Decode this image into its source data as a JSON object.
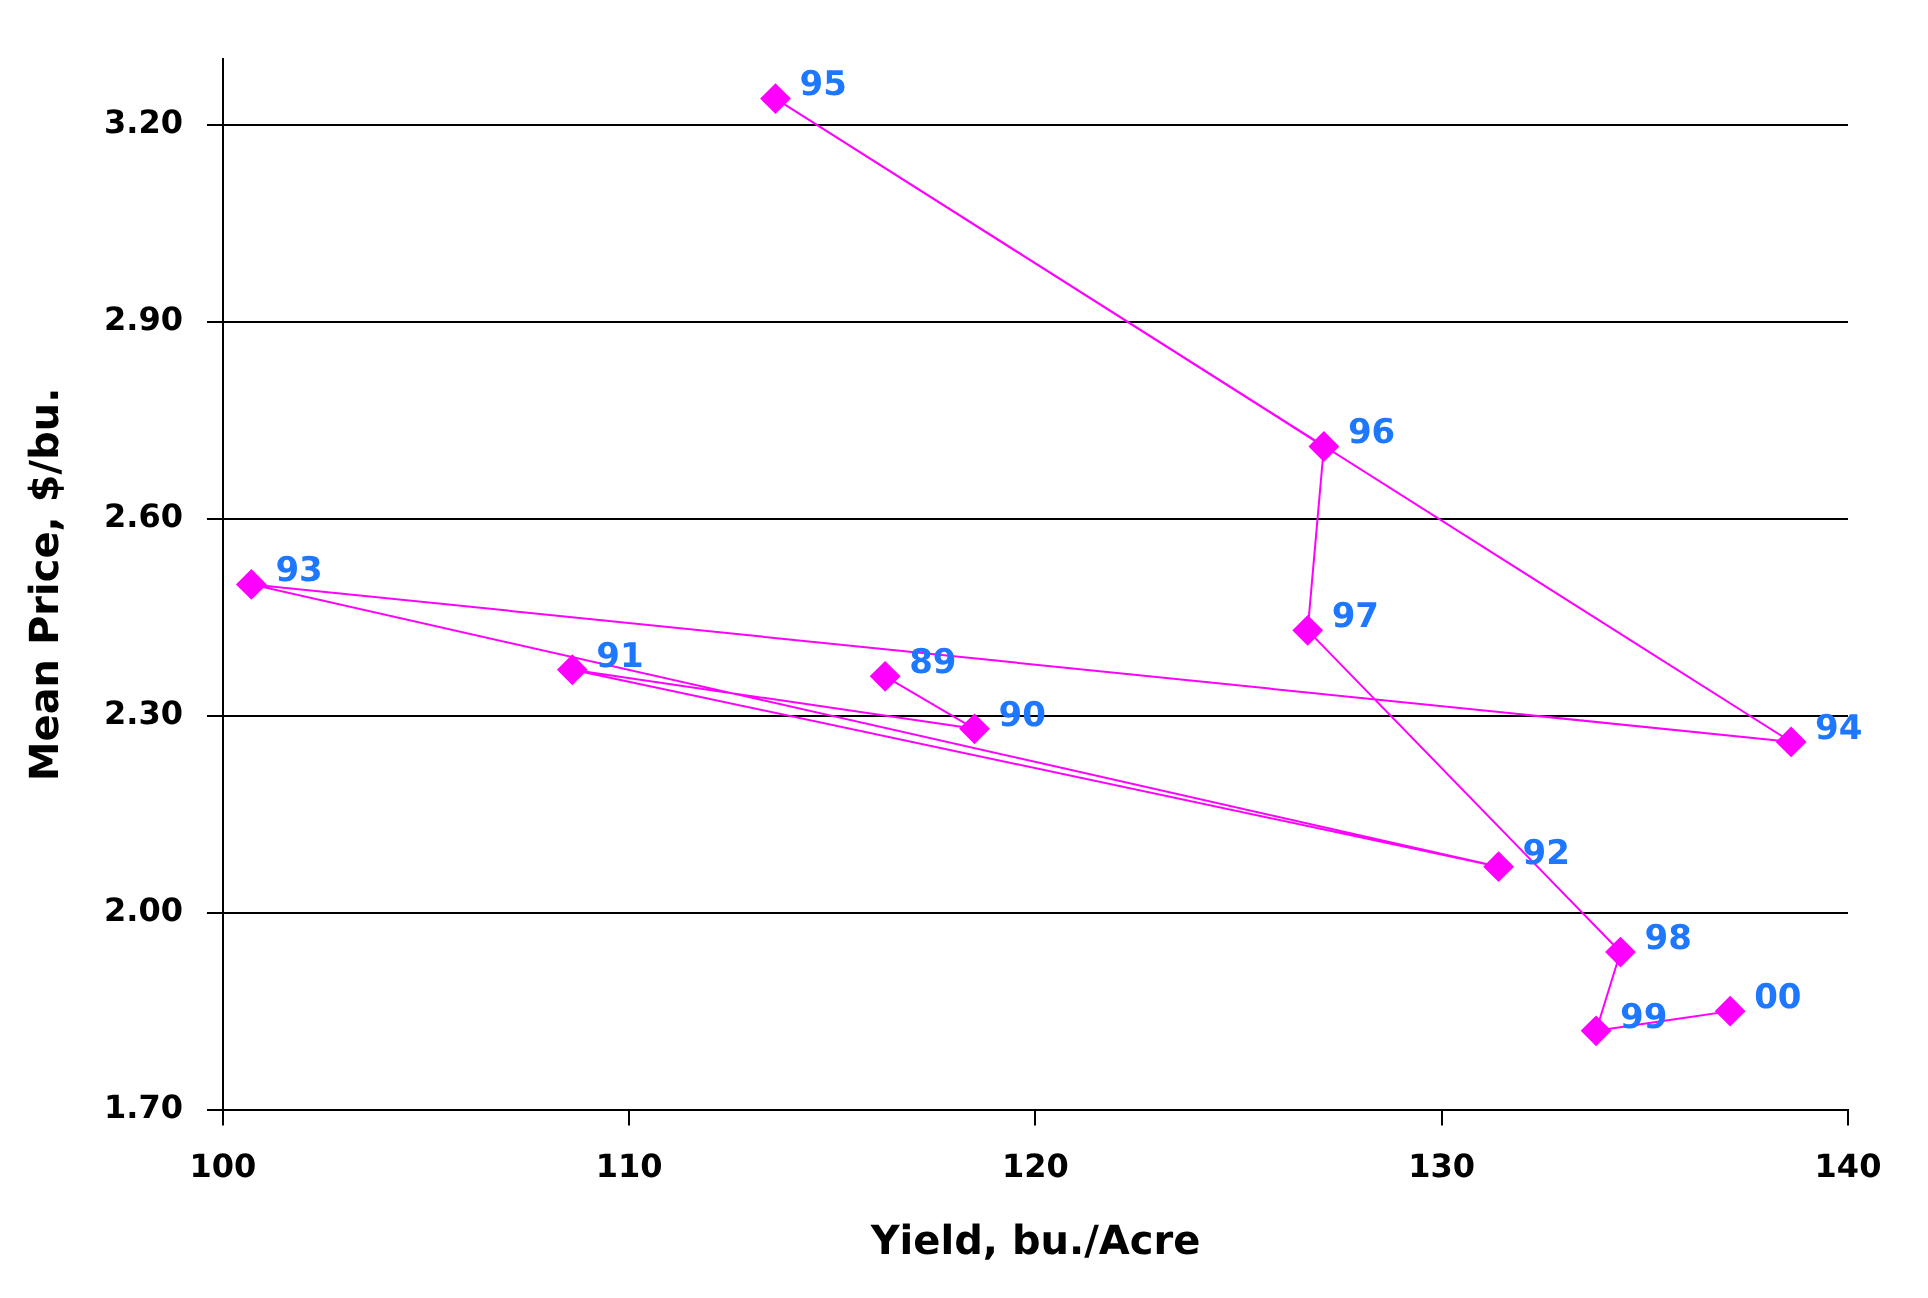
{
  "chart_data": {
    "type": "line",
    "xlabel": "Yield, bu./Acre",
    "ylabel": "Mean Price, $/bu.",
    "x": [
      116.3,
      118.5,
      108.6,
      131.4,
      100.7,
      138.6,
      113.6,
      127.1,
      126.7,
      134.4,
      133.8,
      137.1
    ],
    "series": [
      {
        "color": "#ff00ff",
        "values": [
          2.36,
          2.28,
          2.37,
          2.07,
          2.5,
          2.26,
          3.24,
          2.71,
          2.43,
          1.94,
          1.82,
          1.85
        ]
      }
    ],
    "xlim": [
      100,
      140
    ],
    "xticks": [
      100,
      110,
      120,
      130,
      140
    ],
    "ylim": [
      1.7,
      3.3
    ],
    "yticks": [
      {
        "value": 1.7,
        "label": "1.70"
      },
      {
        "value": 2.0,
        "label": "2.00"
      },
      {
        "value": 2.3,
        "label": "2.30"
      },
      {
        "value": 2.6,
        "label": "2.60"
      },
      {
        "value": 2.9,
        "label": "2.90"
      },
      {
        "value": 3.2,
        "label": "3.20"
      }
    ],
    "grid": "y",
    "legend": false,
    "marker": "diamond",
    "line_style": "solid",
    "annotations": [
      {
        "text": "89",
        "x": 116.3,
        "y": 2.36
      },
      {
        "text": "90",
        "x": 118.5,
        "y": 2.28
      },
      {
        "text": "91",
        "x": 108.6,
        "y": 2.37
      },
      {
        "text": "92",
        "x": 131.4,
        "y": 2.07
      },
      {
        "text": "93",
        "x": 100.7,
        "y": 2.5
      },
      {
        "text": "94",
        "x": 138.6,
        "y": 2.26
      },
      {
        "text": "95",
        "x": 113.6,
        "y": 3.24
      },
      {
        "text": "96",
        "x": 127.1,
        "y": 2.71
      },
      {
        "text": "97",
        "x": 126.7,
        "y": 2.43
      },
      {
        "text": "98",
        "x": 134.4,
        "y": 1.94
      },
      {
        "text": "99",
        "x": 133.8,
        "y": 1.82
      },
      {
        "text": "00",
        "x": 137.1,
        "y": 1.85
      }
    ]
  }
}
